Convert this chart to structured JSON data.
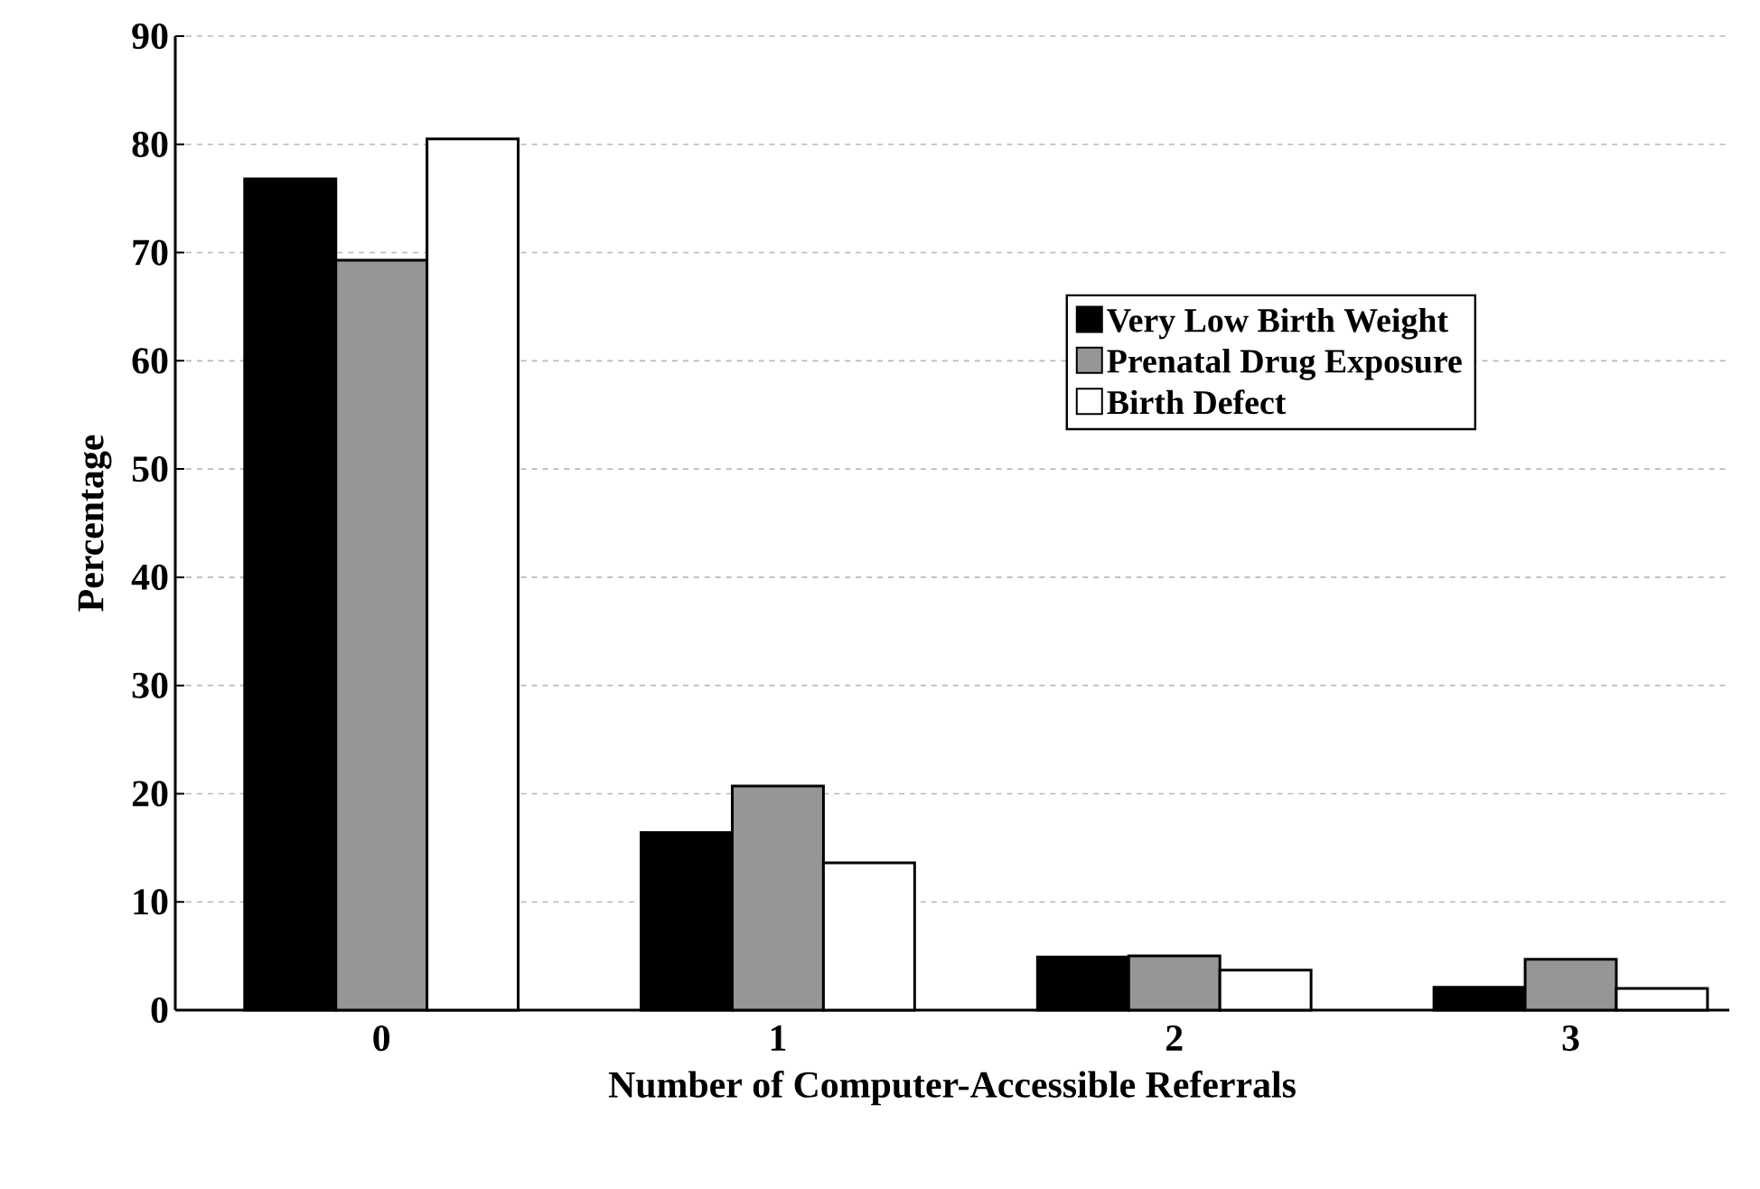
{
  "chart_data": {
    "type": "bar",
    "xlabel": "Number of Computer-Accessible Referrals",
    "ylabel": "Percentage",
    "categories": [
      "0",
      "1",
      "2",
      "3"
    ],
    "series": [
      {
        "name": "Very Low Birth Weight",
        "color": "#000000",
        "values": [
          76.8,
          16.4,
          4.9,
          2.1
        ]
      },
      {
        "name": "Prenatal Drug Exposure",
        "color": "#969696",
        "values": [
          69.3,
          20.7,
          5.0,
          4.7
        ]
      },
      {
        "name": "Birth Defect",
        "color": "#ffffff",
        "values": [
          80.5,
          13.6,
          3.7,
          2.0
        ]
      }
    ],
    "ylim": [
      0,
      90
    ],
    "yticks": [
      0,
      10,
      20,
      30,
      40,
      50,
      60,
      70,
      80,
      90
    ],
    "grid": "y",
    "legend": "top right"
  }
}
